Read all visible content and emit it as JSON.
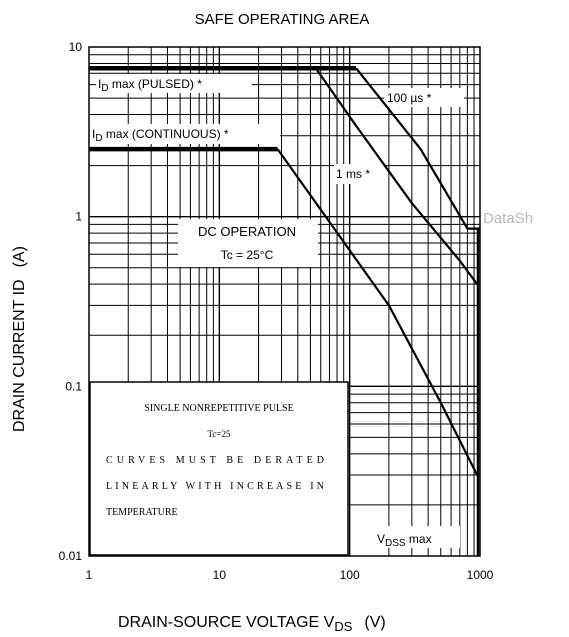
{
  "chart_data": {
    "type": "line",
    "title": "SAFE OPERATING AREA",
    "xlabel": "DRAIN-SOURCE VOLTAGE",
    "xlabel_symbol": "V",
    "xlabel_sub": "DS",
    "xlabel_unit": "(V)",
    "ylabel": "DRAIN CURRENT",
    "ylabel_symbol": "ID",
    "ylabel_unit": "(A)",
    "x_scale": "log",
    "y_scale": "log",
    "xlim": [
      1,
      1000
    ],
    "ylim": [
      0.01,
      10
    ],
    "grid": true,
    "xticks": [
      {
        "value": 1,
        "label": "1"
      },
      {
        "value": 10,
        "label": "10"
      },
      {
        "value": 100,
        "label": "100"
      },
      {
        "value": 1000,
        "label": "1000"
      }
    ],
    "yticks": [
      {
        "value": 0.01,
        "label": "0.01"
      },
      {
        "value": 0.1,
        "label": "0.1"
      },
      {
        "value": 1,
        "label": "1"
      },
      {
        "value": 10,
        "label": "10"
      }
    ],
    "series": [
      {
        "name": "ID max (PULSED) *",
        "points": [
          [
            1,
            7.5
          ],
          [
            112,
            7.5
          ]
        ]
      },
      {
        "name": "100 µs *",
        "points": [
          [
            112,
            7.5
          ],
          [
            350,
            2.5
          ],
          [
            800,
            0.85
          ],
          [
            1000,
            0.85
          ]
        ]
      },
      {
        "name": "1 ms *",
        "points": [
          [
            55,
            7.5
          ],
          [
            110,
            3.5
          ],
          [
            300,
            1.2
          ],
          [
            700,
            0.55
          ],
          [
            950,
            0.4
          ]
        ]
      },
      {
        "name": "ID max (CONTINUOUS) *",
        "points": [
          [
            1,
            2.5
          ],
          [
            28,
            2.5
          ]
        ]
      },
      {
        "name": "DC OPERATION Tc = 25°C",
        "points": [
          [
            28,
            2.5
          ],
          [
            200,
            0.3
          ],
          [
            500,
            0.08
          ],
          [
            950,
            0.03
          ]
        ]
      }
    ],
    "vdss": {
      "value": 1000,
      "label_main": "V",
      "label_sub": "DSS",
      "label_rest": " max"
    },
    "annotations": {
      "pulsed_main": "I",
      "pulsed_sub": "D",
      "pulsed_rest": " max (PULSED) *",
      "continuous_main": "I",
      "continuous_sub": "D",
      "continuous_rest": " max (CONTINUOUS) *",
      "us100": "100 µs *",
      "ms1": "1 ms *",
      "dc_line1": "DC OPERATION",
      "dc_line2": "Tc = 25°C"
    },
    "notes": [
      "SINGLE NONREPETITIVE PULSE",
      "Tc=25",
      "CURVES MUST BE DERATED",
      "LINEARLY WITH INCREASE IN",
      "TEMPERATURE"
    ],
    "watermark": "DataSh"
  }
}
